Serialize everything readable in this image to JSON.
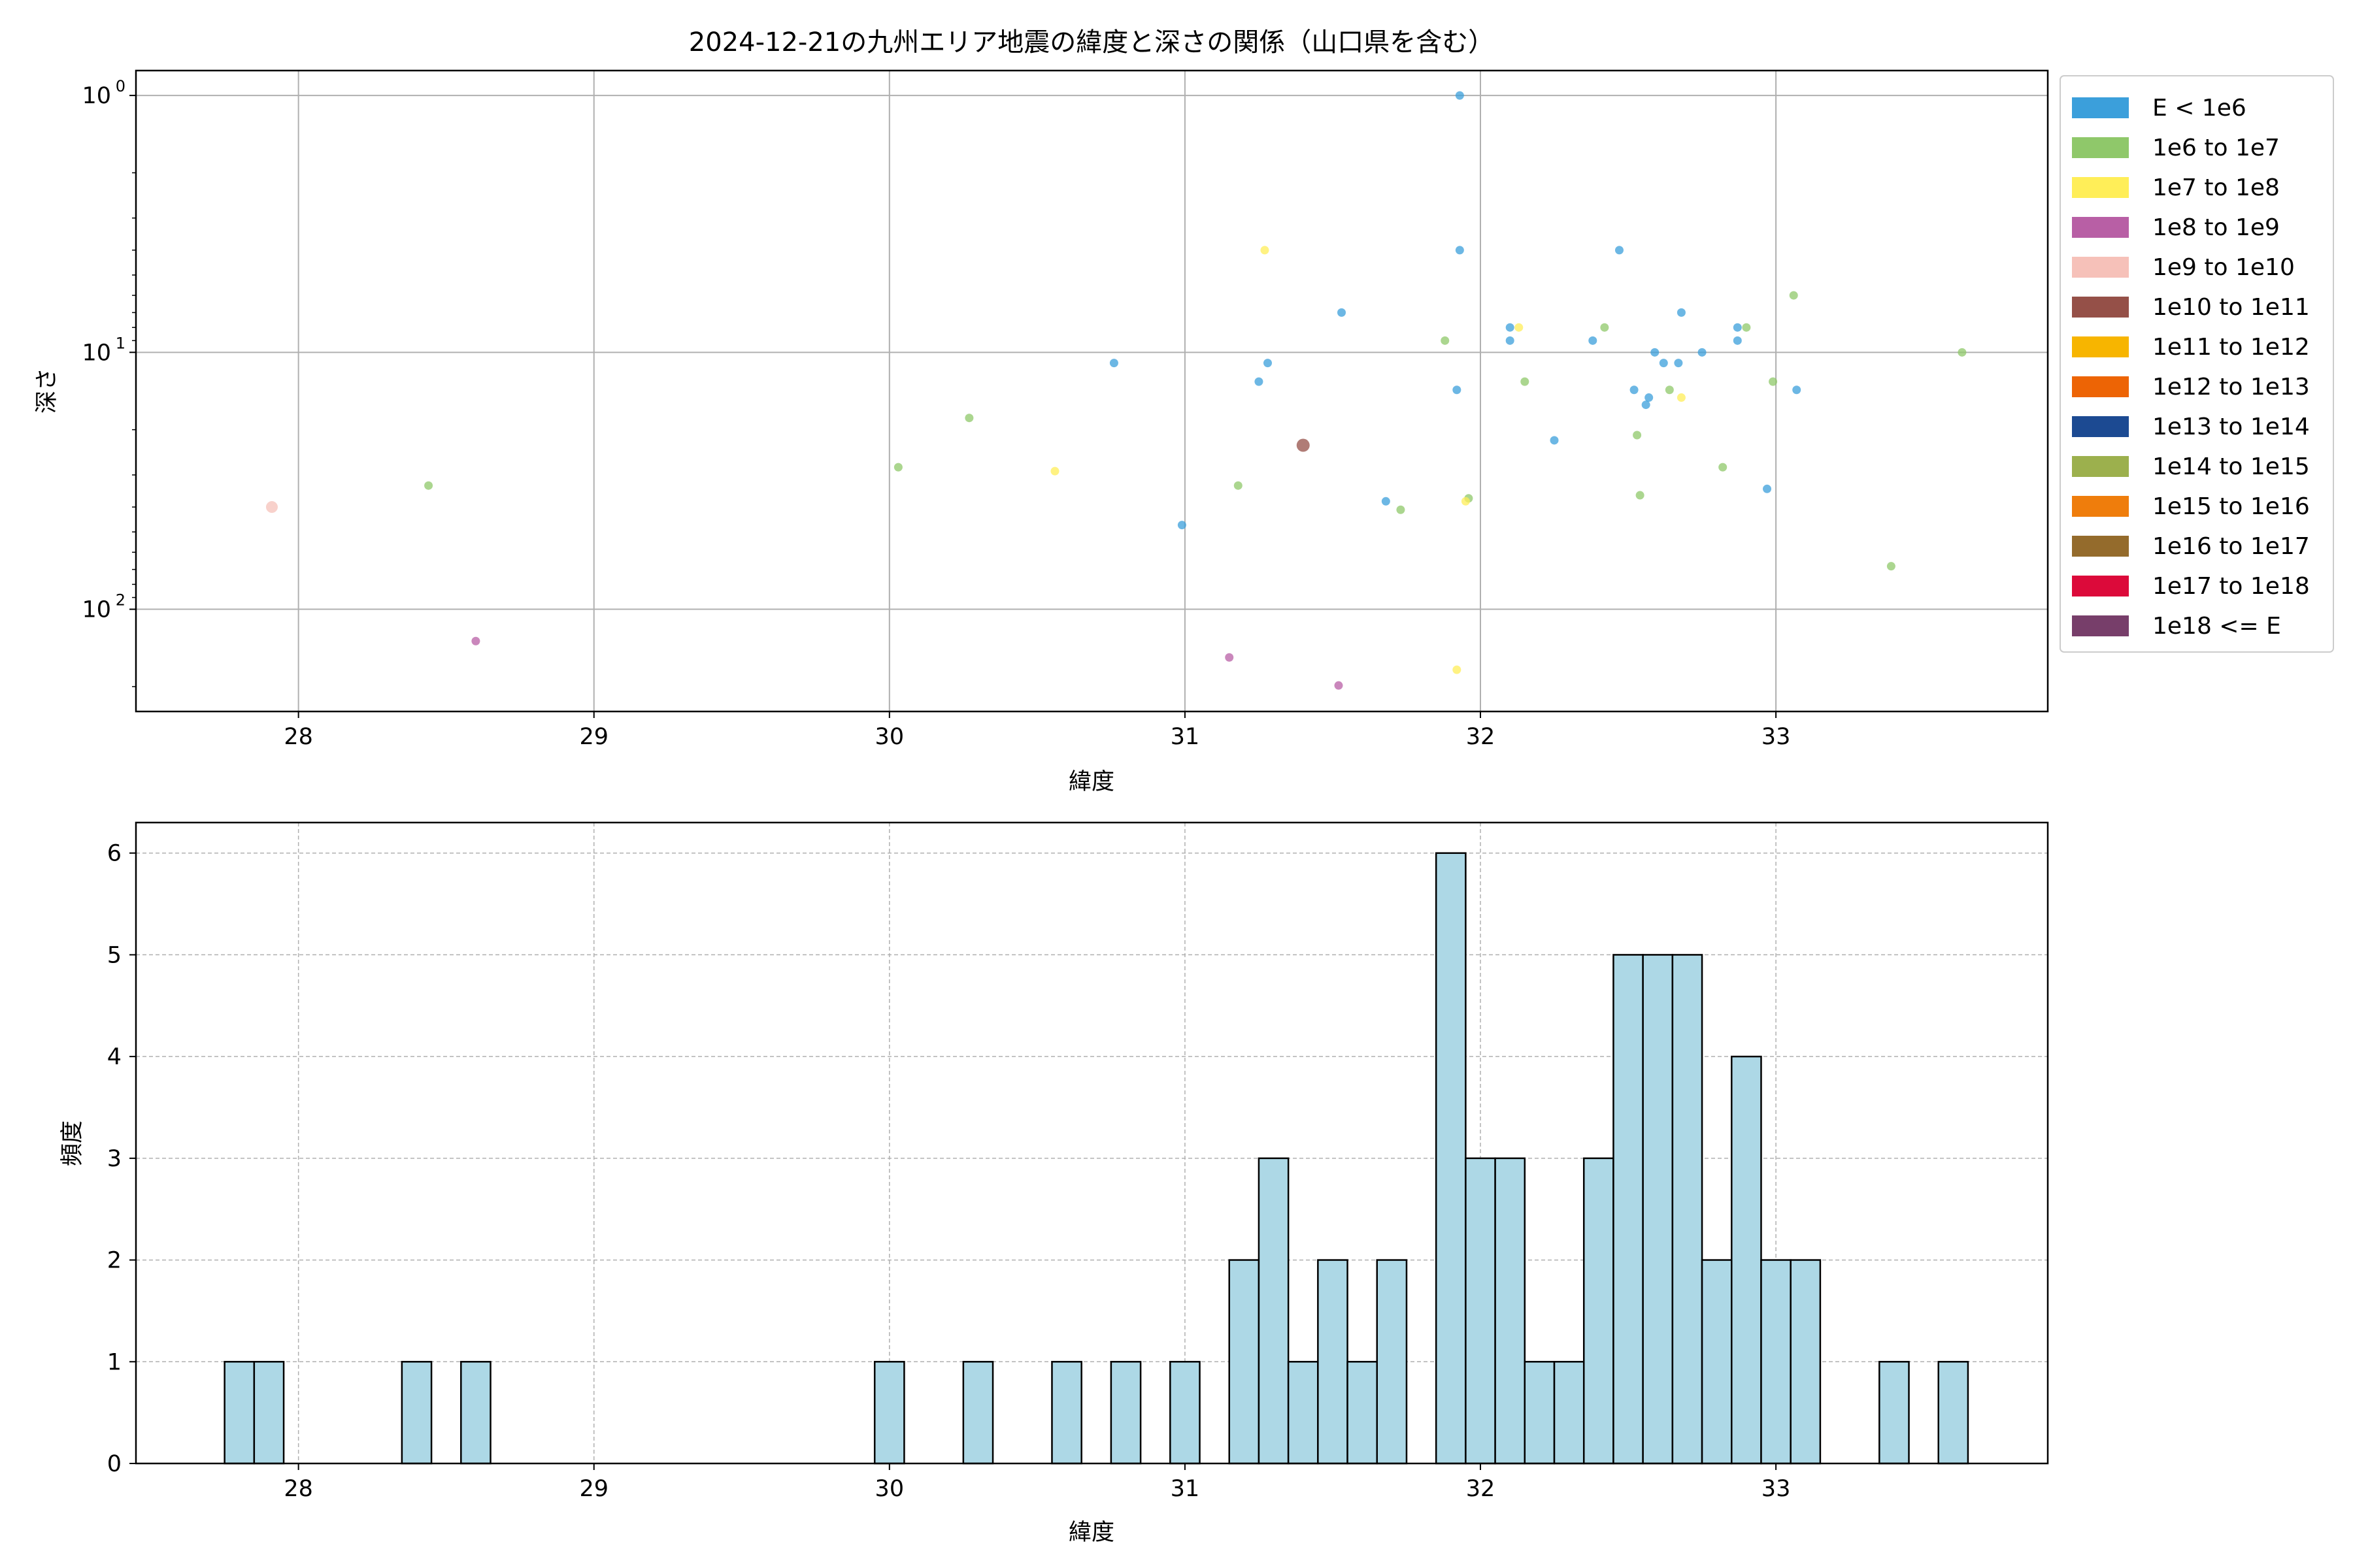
{
  "title": "2024-12-21の九州エリア地震の緯度と深さの関係（山口県を含む）",
  "chart_data": [
    {
      "type": "scatter",
      "xlabel": "緯度",
      "ylabel": "深さ",
      "xlim": [
        27.45,
        33.92
      ],
      "ylim": [
        250,
        0.8
      ],
      "y_scale": "log",
      "y_inverted": true,
      "grid": true,
      "x_ticks": [
        28,
        29,
        30,
        31,
        32,
        33
      ],
      "y_ticks": [
        {
          "value": 1,
          "label": "10",
          "exp": "0"
        },
        {
          "value": 10,
          "label": "10",
          "exp": "1"
        },
        {
          "value": 100,
          "label": "10",
          "exp": "2"
        }
      ],
      "legend_position": "right-outside-top",
      "legend": [
        {
          "label": "E < 1e6",
          "color": "#3b9fdb"
        },
        {
          "label": "1e6 to 1e7",
          "color": "#8fc86a"
        },
        {
          "label": "1e7 to 1e8",
          "color": "#ffee58"
        },
        {
          "label": "1e8 to 1e9",
          "color": "#b85fa5"
        },
        {
          "label": "1e9 to 1e10",
          "color": "#f6c1b9"
        },
        {
          "label": "1e10 to 1e11",
          "color": "#955048"
        },
        {
          "label": "1e11 to 1e12",
          "color": "#f7b500"
        },
        {
          "label": "1e12 to 1e13",
          "color": "#ed6405"
        },
        {
          "label": "1e13 to 1e14",
          "color": "#1c4a92"
        },
        {
          "label": "1e14 to 1e15",
          "color": "#9cb04d"
        },
        {
          "label": "1e15 to 1e16",
          "color": "#ef7d0c"
        },
        {
          "label": "1e16 to 1e17",
          "color": "#946b2c"
        },
        {
          "label": "1e17 to 1e18",
          "color": "#dc0a3a"
        },
        {
          "label": "1e18 <= E",
          "color": "#773e6a"
        }
      ],
      "series": [
        {
          "class": 0,
          "points": [
            [
              31.93,
              1
            ],
            [
              31.93,
              4
            ],
            [
              32.47,
              4
            ],
            [
              32.68,
              7
            ],
            [
              31.53,
              7
            ],
            [
              32.1,
              8
            ],
            [
              32.1,
              9
            ],
            [
              32.38,
              9
            ],
            [
              32.87,
              8
            ],
            [
              32.87,
              9
            ],
            [
              30.76,
              11
            ],
            [
              31.28,
              11
            ],
            [
              32.59,
              10
            ],
            [
              32.62,
              11
            ],
            [
              32.67,
              11
            ],
            [
              32.75,
              10
            ],
            [
              31.25,
              13
            ],
            [
              31.92,
              14
            ],
            [
              32.52,
              14
            ],
            [
              32.57,
              15
            ],
            [
              32.56,
              16
            ],
            [
              33.07,
              14
            ],
            [
              32.25,
              22
            ],
            [
              31.68,
              38
            ],
            [
              32.97,
              34
            ],
            [
              30.99,
              47
            ]
          ]
        },
        {
          "class": 1,
          "points": [
            [
              33.06,
              6
            ],
            [
              32.42,
              8
            ],
            [
              32.9,
              8
            ],
            [
              31.88,
              9
            ],
            [
              33.63,
              10
            ],
            [
              32.15,
              13
            ],
            [
              32.99,
              13
            ],
            [
              32.64,
              14
            ],
            [
              30.27,
              18
            ],
            [
              32.53,
              21
            ],
            [
              30.03,
              28
            ],
            [
              32.82,
              28
            ],
            [
              28.44,
              33
            ],
            [
              31.18,
              33
            ],
            [
              32.54,
              36
            ],
            [
              31.73,
              41
            ],
            [
              31.96,
              37
            ],
            [
              33.39,
              68
            ]
          ]
        },
        {
          "class": 2,
          "points": [
            [
              31.27,
              4
            ],
            [
              32.13,
              8
            ],
            [
              32.68,
              15
            ],
            [
              30.56,
              29
            ],
            [
              31.95,
              38
            ],
            [
              31.92,
              172
            ]
          ]
        },
        {
          "class": 3,
          "points": [
            [
              28.6,
              133
            ],
            [
              31.15,
              154
            ],
            [
              31.52,
              198
            ]
          ]
        },
        {
          "class": 4,
          "points": [
            [
              27.91,
              40
            ]
          ]
        },
        {
          "class": 5,
          "points": [
            [
              31.4,
              23
            ]
          ]
        }
      ]
    },
    {
      "type": "bar",
      "subtype": "histogram",
      "xlabel": "緯度",
      "ylabel": "頻度",
      "xlim": [
        27.45,
        33.92
      ],
      "ylim": [
        0,
        6.3
      ],
      "grid": true,
      "bar_color": "#add8e6",
      "x_ticks": [
        28,
        29,
        30,
        31,
        32,
        33
      ],
      "y_ticks": [
        0,
        1,
        2,
        3,
        4,
        5,
        6
      ],
      "bin_start": 27.75,
      "bin_width": 0.1,
      "values": [
        1,
        1,
        0,
        0,
        0,
        0,
        1,
        0,
        1,
        0,
        0,
        0,
        0,
        0,
        0,
        0,
        0,
        0,
        0,
        0,
        0,
        0,
        1,
        0,
        0,
        1,
        0,
        0,
        1,
        0,
        1,
        0,
        1,
        0,
        2,
        3,
        1,
        2,
        1,
        2,
        0,
        6,
        3,
        3,
        1,
        1,
        3,
        5,
        5,
        5,
        2,
        4,
        2,
        2,
        0,
        0,
        1,
        0,
        1
      ]
    }
  ]
}
